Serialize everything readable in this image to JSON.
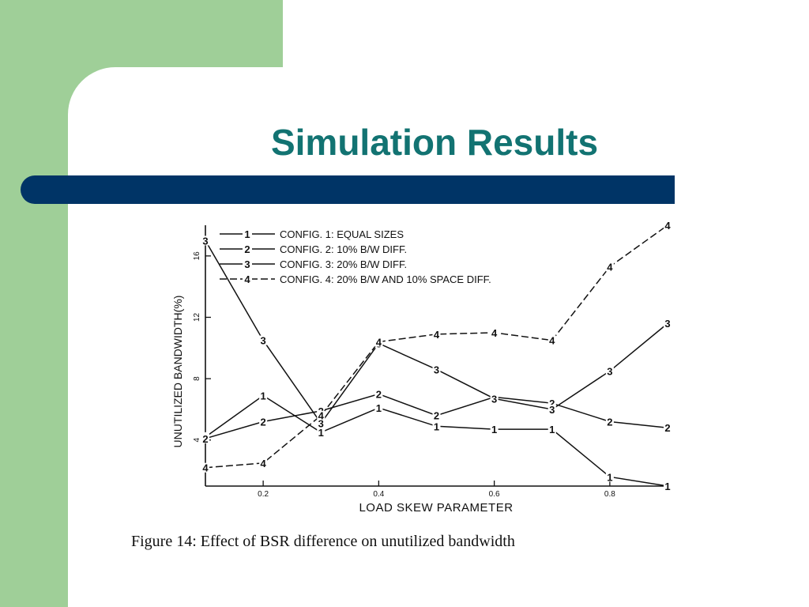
{
  "slide": {
    "title": "Simulation Results",
    "caption": "Figure 14:  Effect of BSR difference on unutilized bandwidth",
    "colors": {
      "green_block": "#9fcf98",
      "title_text": "#127372",
      "bar": "#003466"
    }
  },
  "chart_data": {
    "type": "line",
    "title": "",
    "xlabel": "LOAD SKEW PARAMETER",
    "ylabel": "UNUTILIZED BANDWIDTH(%)",
    "xlim": [
      0.1,
      0.9
    ],
    "ylim": [
      1,
      18
    ],
    "xticks": [
      "0.2",
      "0.4",
      "0.6",
      "0.8"
    ],
    "yticks": [
      "4",
      "8",
      "12",
      "16"
    ],
    "grid": false,
    "legend_position": "top-left",
    "x": [
      0.1,
      0.2,
      0.3,
      0.4,
      0.5,
      0.6,
      0.7,
      0.8,
      0.9
    ],
    "series": [
      {
        "name": "CONFIG. 1: EQUAL SIZES",
        "marker": "1",
        "dash": "solid",
        "values": [
          4.2,
          6.9,
          4.5,
          6.1,
          4.9,
          4.7,
          4.7,
          1.6,
          1.0
        ]
      },
      {
        "name": "CONFIG. 2: 10% B/W DIFF.",
        "marker": "2",
        "dash": "solid",
        "values": [
          4.1,
          5.2,
          5.9,
          7.0,
          5.6,
          6.8,
          6.4,
          5.2,
          4.8
        ]
      },
      {
        "name": "CONFIG. 3: 20% B/W DIFF.",
        "marker": "3",
        "dash": "solid",
        "values": [
          17.0,
          10.5,
          5.1,
          10.3,
          8.6,
          6.7,
          6.0,
          8.5,
          11.6
        ]
      },
      {
        "name": "CONFIG. 4: 20% B/W AND 10% SPACE DIFF.",
        "marker": "4",
        "dash": "dashed",
        "values": [
          2.2,
          2.5,
          5.6,
          10.4,
          10.9,
          11.0,
          10.5,
          15.3,
          18.0
        ]
      }
    ]
  }
}
